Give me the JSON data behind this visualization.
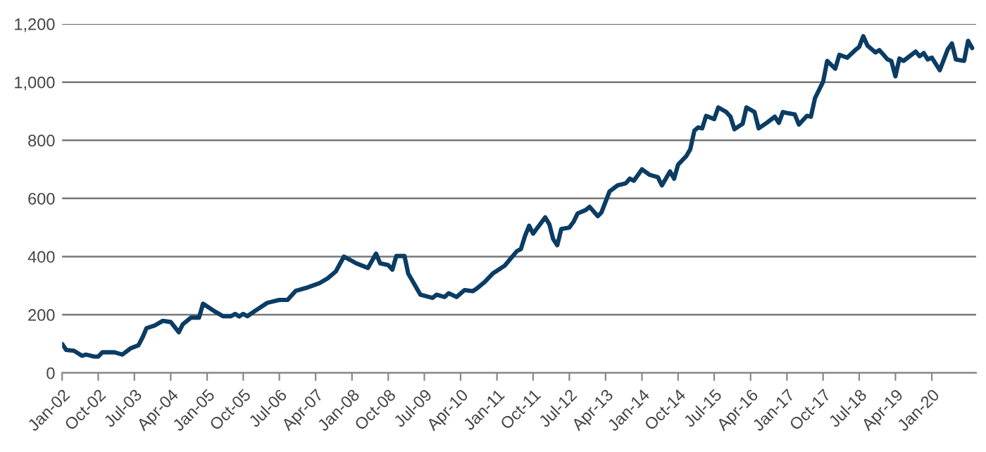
{
  "chart_data": {
    "type": "line",
    "series": [
      {
        "color": "#0b3c64",
        "x": [
          "2002-01",
          "2002-02",
          "2002-04",
          "2002-06",
          "2002-07",
          "2002-09",
          "2002-10",
          "2002-11",
          "2003-02",
          "2003-04",
          "2003-06",
          "2003-08",
          "2003-09",
          "2003-10",
          "2003-12",
          "2004-02",
          "2004-04",
          "2004-06",
          "2004-07",
          "2004-09",
          "2004-11",
          "2004-12",
          "2005-03",
          "2005-05",
          "2005-07",
          "2005-08",
          "2005-09",
          "2005-10",
          "2005-11",
          "2006-01",
          "2006-04",
          "2006-07",
          "2006-09",
          "2006-11",
          "2007-02",
          "2007-05",
          "2007-07",
          "2007-09",
          "2007-11",
          "2008-01",
          "2008-02",
          "2008-05",
          "2008-07",
          "2008-08",
          "2008-10",
          "2008-11",
          "2008-12",
          "2009-02",
          "2009-03",
          "2009-06",
          "2009-09",
          "2009-10",
          "2009-12",
          "2010-01",
          "2010-03",
          "2010-05",
          "2010-07",
          "2010-08",
          "2010-10",
          "2010-12",
          "2011-03",
          "2011-04",
          "2011-06",
          "2011-07",
          "2011-08",
          "2011-09",
          "2011-10",
          "2012-01",
          "2012-02",
          "2012-03",
          "2012-04",
          "2012-05",
          "2012-07",
          "2012-08",
          "2012-09",
          "2012-11",
          "2012-12",
          "2013-02",
          "2013-03",
          "2013-05",
          "2013-07",
          "2013-09",
          "2013-10",
          "2013-11",
          "2014-01",
          "2014-03",
          "2014-05",
          "2014-06",
          "2014-08",
          "2014-09",
          "2014-10",
          "2014-12",
          "2015-01",
          "2015-02",
          "2015-03",
          "2015-04",
          "2015-05",
          "2015-07",
          "2015-08",
          "2015-10",
          "2015-11",
          "2015-12",
          "2016-02",
          "2016-03",
          "2016-05",
          "2016-06",
          "2016-08",
          "2016-10",
          "2016-11",
          "2016-12",
          "2017-01",
          "2017-03",
          "2017-04",
          "2017-06",
          "2017-07",
          "2017-08",
          "2017-10",
          "2017-11",
          "2018-01",
          "2018-02",
          "2018-04",
          "2018-06",
          "2018-07",
          "2018-08",
          "2018-09",
          "2018-11",
          "2018-12",
          "2019-02",
          "2019-03",
          "2019-04",
          "2019-05",
          "2019-06",
          "2019-09",
          "2019-10",
          "2019-11",
          "2019-12",
          "2020-01",
          "2020-03",
          "2020-05",
          "2020-06",
          "2020-07",
          "2020-09",
          "2020-10",
          "2020-11"
        ],
        "values": [
          100,
          79,
          76,
          59,
          63,
          56,
          56,
          71,
          71,
          63,
          84,
          95,
          122,
          154,
          163,
          179,
          175,
          140,
          167,
          190,
          190,
          238,
          211,
          195,
          195,
          203,
          194,
          203,
          195,
          214,
          241,
          251,
          251,
          282,
          294,
          309,
          325,
          349,
          400,
          385,
          377,
          361,
          410,
          377,
          371,
          355,
          402,
          402,
          342,
          269,
          258,
          269,
          261,
          274,
          261,
          285,
          281,
          290,
          313,
          342,
          369,
          386,
          419,
          426,
          471,
          506,
          479,
          535,
          511,
          460,
          439,
          495,
          500,
          519,
          548,
          560,
          571,
          539,
          552,
          624,
          645,
          652,
          668,
          661,
          700,
          681,
          673,
          645,
          693,
          668,
          716,
          745,
          769,
          833,
          844,
          841,
          884,
          873,
          913,
          897,
          881,
          838,
          857,
          913,
          897,
          841,
          860,
          881,
          860,
          897,
          894,
          889,
          854,
          884,
          881,
          945,
          1001,
          1073,
          1046,
          1094,
          1084,
          1110,
          1121,
          1158,
          1126,
          1102,
          1110,
          1078,
          1073,
          1020,
          1081,
          1073,
          1105,
          1089,
          1100,
          1078,
          1084,
          1041,
          1113,
          1133,
          1078,
          1073,
          1142,
          1117
        ]
      }
    ],
    "xlim": [
      "2002-01",
      "2020-12"
    ],
    "xticks": [
      {
        "value": "2002-01",
        "label": "Jan-02"
      },
      {
        "value": "2002-10",
        "label": "Oct-02"
      },
      {
        "value": "2003-07",
        "label": "Jul-03"
      },
      {
        "value": "2004-04",
        "label": "Apr-04"
      },
      {
        "value": "2005-01",
        "label": "Jan-05"
      },
      {
        "value": "2005-10",
        "label": "Oct-05"
      },
      {
        "value": "2006-07",
        "label": "Jul-06"
      },
      {
        "value": "2007-04",
        "label": "Apr-07"
      },
      {
        "value": "2008-01",
        "label": "Jan-08"
      },
      {
        "value": "2008-10",
        "label": "Oct-08"
      },
      {
        "value": "2009-07",
        "label": "Jul-09"
      },
      {
        "value": "2010-04",
        "label": "Apr-10"
      },
      {
        "value": "2011-01",
        "label": "Jan-11"
      },
      {
        "value": "2011-10",
        "label": "Oct-11"
      },
      {
        "value": "2012-07",
        "label": "Jul-12"
      },
      {
        "value": "2013-04",
        "label": "Apr-13"
      },
      {
        "value": "2014-01",
        "label": "Jan-14"
      },
      {
        "value": "2014-10",
        "label": "Oct-14"
      },
      {
        "value": "2015-07",
        "label": "Jul-15"
      },
      {
        "value": "2016-04",
        "label": "Apr-16"
      },
      {
        "value": "2017-01",
        "label": "Jan-17"
      },
      {
        "value": "2017-10",
        "label": "Oct-17"
      },
      {
        "value": "2018-07",
        "label": "Jul-18"
      },
      {
        "value": "2019-04",
        "label": "Apr-19"
      },
      {
        "value": "2020-01",
        "label": "Jan-20"
      }
    ],
    "ylim": [
      0,
      1200
    ],
    "yticks": [
      0,
      200,
      400,
      600,
      800,
      {
        "value": 1000,
        "label": "1,000"
      },
      {
        "value": 1200,
        "label": "1,200"
      }
    ],
    "grid": "y",
    "line_style": "solid"
  }
}
